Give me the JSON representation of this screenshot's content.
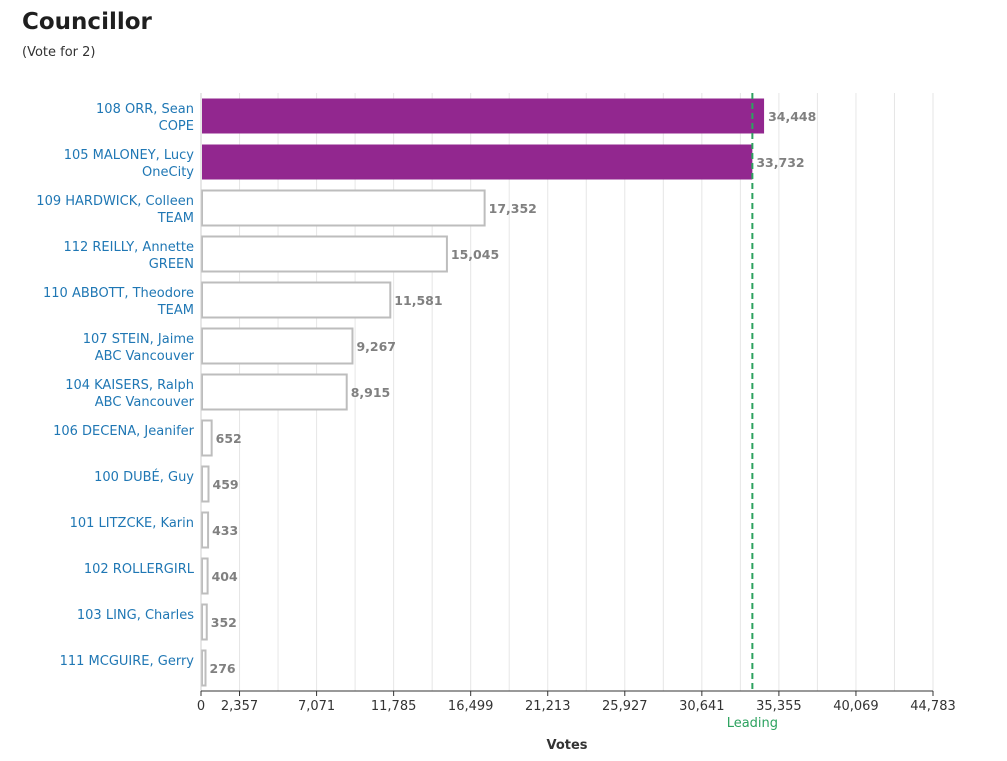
{
  "header": {
    "title": "Councillor",
    "subtitle": "(Vote for 2)"
  },
  "colors": {
    "winner_bar": "#92278f",
    "other_bar_fill": "#ffffff",
    "other_bar_stroke": "#bdbdbd",
    "name_link": "#1f77b4",
    "value_label": "#808080",
    "gridline": "#e6e6e6",
    "leading_line": "#2ca25f"
  },
  "chart_data": {
    "type": "bar",
    "orientation": "horizontal",
    "xlabel": "Votes",
    "xlim": [
      0,
      44783
    ],
    "x_ticks": [
      0,
      2357,
      7071,
      11785,
      16499,
      21213,
      25927,
      30641,
      35355,
      40069,
      44783
    ],
    "x_tick_labels": [
      "0",
      "2,357",
      "7,071",
      "11,785",
      "16,499",
      "21,213",
      "25,927",
      "30,641",
      "35,355",
      "40,069",
      "44,783"
    ],
    "grid": true,
    "leading": {
      "label": "Leading",
      "value": 33732
    },
    "candidates": [
      {
        "name": "108 ORR, Sean",
        "party": "COPE",
        "votes": 34448,
        "votes_label": "34,448",
        "winner": true
      },
      {
        "name": "105 MALONEY, Lucy",
        "party": "OneCity",
        "votes": 33732,
        "votes_label": "33,732",
        "winner": true
      },
      {
        "name": "109 HARDWICK, Colleen",
        "party": "TEAM",
        "votes": 17352,
        "votes_label": "17,352",
        "winner": false
      },
      {
        "name": "112 REILLY, Annette",
        "party": "GREEN",
        "votes": 15045,
        "votes_label": "15,045",
        "winner": false
      },
      {
        "name": "110 ABBOTT, Theodore",
        "party": "TEAM",
        "votes": 11581,
        "votes_label": "11,581",
        "winner": false
      },
      {
        "name": "107 STEIN, Jaime",
        "party": "ABC Vancouver",
        "votes": 9267,
        "votes_label": "9,267",
        "winner": false
      },
      {
        "name": "104 KAISERS, Ralph",
        "party": "ABC Vancouver",
        "votes": 8915,
        "votes_label": "8,915",
        "winner": false
      },
      {
        "name": "106 DECENA, Jeanifer",
        "party": "",
        "votes": 652,
        "votes_label": "652",
        "winner": false
      },
      {
        "name": "100 DUBÉ, Guy",
        "party": "",
        "votes": 459,
        "votes_label": "459",
        "winner": false
      },
      {
        "name": "101 LITZCKE, Karin",
        "party": "",
        "votes": 433,
        "votes_label": "433",
        "winner": false
      },
      {
        "name": "102 ROLLERGIRL",
        "party": "",
        "votes": 404,
        "votes_label": "404",
        "winner": false
      },
      {
        "name": "103 LING, Charles",
        "party": "",
        "votes": 352,
        "votes_label": "352",
        "winner": false
      },
      {
        "name": "111 MCGUIRE, Gerry",
        "party": "",
        "votes": 276,
        "votes_label": "276",
        "winner": false
      }
    ]
  }
}
